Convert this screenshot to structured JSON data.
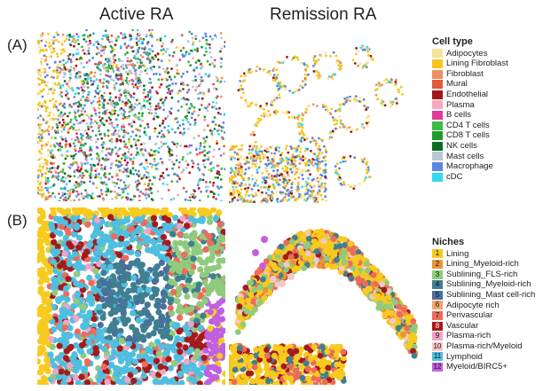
{
  "columns": {
    "left": "Active RA",
    "right": "Remission RA"
  },
  "panels": {
    "a_label": "(A)",
    "b_label": "(B)"
  },
  "cell_legend": {
    "title": "Cell type",
    "items": [
      {
        "label": "Adipocytes",
        "color": "#f3e49a"
      },
      {
        "label": "Lining Fibroblast",
        "color": "#f6c51d"
      },
      {
        "label": "Fibroblast",
        "color": "#ef8f63"
      },
      {
        "label": "Mural",
        "color": "#e05a3b"
      },
      {
        "label": "Endothelial",
        "color": "#a31616"
      },
      {
        "label": "Plasma",
        "color": "#f6a9bf"
      },
      {
        "label": "B cells",
        "color": "#e23a9b"
      },
      {
        "label": "CD4 T cells",
        "color": "#3dbb45"
      },
      {
        "label": "CD8 T cells",
        "color": "#1f9a2e"
      },
      {
        "label": "NK cells",
        "color": "#0f6b24"
      },
      {
        "label": "Mast cells",
        "color": "#b8c7d6"
      },
      {
        "label": "Macrophage",
        "color": "#5b87de"
      },
      {
        "label": "cDC",
        "color": "#35d9ef"
      }
    ]
  },
  "niche_legend": {
    "title": "Niches",
    "items": [
      {
        "num": "1",
        "label": "Lining",
        "color": "#f7ca1e"
      },
      {
        "num": "2",
        "label": "Lining_Myeloid-rich",
        "color": "#e6963a"
      },
      {
        "num": "3",
        "label": "Sublining_FLS-rich",
        "color": "#8fcb7c"
      },
      {
        "num": "4",
        "label": "Sublining_Myeloid-rich",
        "color": "#3f7f90"
      },
      {
        "num": "5",
        "label": "Sublining_Mast cell-rich",
        "color": "#4a6f9a"
      },
      {
        "num": "6",
        "label": "Adipocyte rich",
        "color": "#f1a56c"
      },
      {
        "num": "7",
        "label": "Perivascular",
        "color": "#ee6a5b"
      },
      {
        "num": "8",
        "label": "Vascular",
        "color": "#a51b1b"
      },
      {
        "num": "9",
        "label": "Plasma-rich",
        "color": "#f2a3c7"
      },
      {
        "num": "10",
        "label": "Plasma-rich/Myeloid",
        "color": "#f7c8c8"
      },
      {
        "num": "11",
        "label": "Lymphoid",
        "color": "#4fbfe0"
      },
      {
        "num": "12",
        "label": "Myeloid/BIRC5+",
        "color": "#c060e0"
      }
    ]
  }
}
